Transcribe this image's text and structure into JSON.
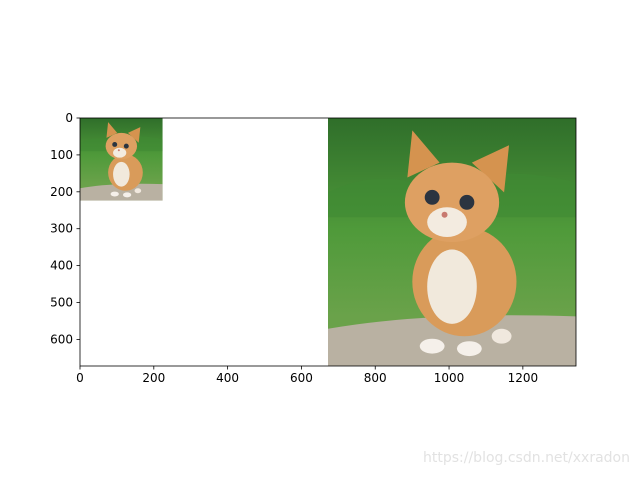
{
  "chart_data": {
    "type": "image",
    "xlim": [
      0,
      1344
    ],
    "ylim": [
      672,
      0
    ],
    "xticks": [
      0,
      200,
      400,
      600,
      800,
      1000,
      1200
    ],
    "yticks": [
      0,
      100,
      200,
      300,
      400,
      500,
      600
    ],
    "images": [
      {
        "x": [
          0,
          224
        ],
        "y": [
          0,
          224
        ]
      },
      {
        "x": [
          672,
          1344
        ],
        "y": [
          0,
          672
        ]
      }
    ],
    "watermark": "https://blog.csdn.net/xxradon"
  }
}
